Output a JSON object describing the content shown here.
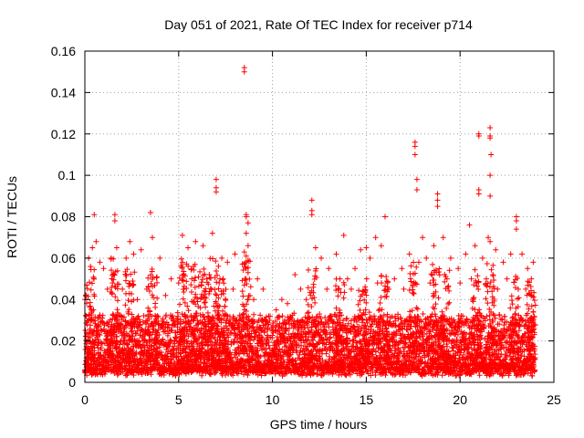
{
  "chart_data": {
    "type": "scatter",
    "title": "Day 051 of 2021, Rate Of TEC Index for receiver p714",
    "xlabel": "GPS time / hours",
    "ylabel": "ROTI / TECUs",
    "xlim": [
      0,
      25
    ],
    "ylim": [
      0,
      0.16
    ],
    "x_ticks": [
      0,
      5,
      10,
      15,
      20,
      25
    ],
    "x_tick_labels": [
      "0",
      "5",
      "10",
      "15",
      "20",
      "25"
    ],
    "y_ticks": [
      0,
      0.02,
      0.04,
      0.06,
      0.08,
      0.1,
      0.12,
      0.14,
      0.16
    ],
    "y_tick_labels": [
      "0",
      "0.02",
      "0.04",
      "0.06",
      "0.08",
      "0.1",
      "0.12",
      "0.14",
      "0.16"
    ],
    "grid": true,
    "marker": "+",
    "series": [
      {
        "name": "ROTI",
        "color": "#ff0000",
        "baseline": {
          "x_start": 0.0,
          "x_end": 24.0,
          "step_hours": 0.015,
          "typical_range": [
            0.003,
            0.03
          ]
        },
        "points": [
          [
            8.5,
            0.152
          ],
          [
            8.5,
            0.15
          ],
          [
            21.0,
            0.12
          ],
          [
            21.0,
            0.119
          ],
          [
            21.6,
            0.123
          ],
          [
            21.6,
            0.119
          ],
          [
            21.6,
            0.118
          ],
          [
            21.65,
            0.11
          ],
          [
            21.6,
            0.1
          ],
          [
            21.6,
            0.09
          ],
          [
            17.6,
            0.116
          ],
          [
            17.6,
            0.114
          ],
          [
            17.6,
            0.11
          ],
          [
            17.7,
            0.098
          ],
          [
            17.7,
            0.093
          ],
          [
            21.0,
            0.093
          ],
          [
            21.0,
            0.091
          ],
          [
            18.8,
            0.091
          ],
          [
            18.8,
            0.088
          ],
          [
            18.8,
            0.085
          ],
          [
            7.0,
            0.098
          ],
          [
            7.0,
            0.094
          ],
          [
            7.0,
            0.092
          ],
          [
            12.1,
            0.088
          ],
          [
            12.1,
            0.083
          ],
          [
            12.1,
            0.081
          ],
          [
            0.5,
            0.081
          ],
          [
            1.6,
            0.081
          ],
          [
            1.6,
            0.078
          ],
          [
            3.5,
            0.082
          ],
          [
            8.6,
            0.081
          ],
          [
            8.6,
            0.08
          ],
          [
            8.7,
            0.077
          ],
          [
            8.6,
            0.072
          ],
          [
            8.7,
            0.066
          ],
          [
            8.5,
            0.063
          ],
          [
            8.6,
            0.061
          ],
          [
            8.7,
            0.059
          ],
          [
            8.5,
            0.057
          ],
          [
            8.6,
            0.055
          ],
          [
            8.7,
            0.053
          ],
          [
            8.6,
            0.05
          ],
          [
            8.5,
            0.047
          ],
          [
            8.4,
            0.044
          ],
          [
            8.7,
            0.04
          ],
          [
            16.0,
            0.08
          ],
          [
            23.0,
            0.08
          ],
          [
            23.0,
            0.078
          ],
          [
            23.0,
            0.074
          ],
          [
            20.5,
            0.076
          ],
          [
            18.0,
            0.07
          ],
          [
            21.5,
            0.07
          ],
          [
            21.6,
            0.068
          ],
          [
            13.8,
            0.071
          ],
          [
            15.0,
            0.065
          ],
          [
            15.5,
            0.07
          ],
          [
            14.7,
            0.064
          ],
          [
            0.4,
            0.065
          ],
          [
            0.6,
            0.068
          ],
          [
            0.2,
            0.06
          ],
          [
            0.3,
            0.056
          ],
          [
            0.8,
            0.058
          ],
          [
            1.0,
            0.055
          ],
          [
            1.4,
            0.06
          ],
          [
            1.7,
            0.065
          ],
          [
            2.2,
            0.06
          ],
          [
            2.4,
            0.068
          ],
          [
            2.6,
            0.062
          ],
          [
            3.0,
            0.064
          ],
          [
            3.6,
            0.07
          ],
          [
            4.0,
            0.06
          ],
          [
            4.6,
            0.05
          ],
          [
            5.2,
            0.071
          ],
          [
            5.5,
            0.065
          ],
          [
            5.9,
            0.068
          ],
          [
            6.3,
            0.066
          ],
          [
            6.8,
            0.072
          ],
          [
            7.3,
            0.06
          ],
          [
            7.6,
            0.058
          ],
          [
            8.0,
            0.062
          ],
          [
            9.2,
            0.05
          ],
          [
            9.5,
            0.045
          ],
          [
            10.5,
            0.04
          ],
          [
            11.2,
            0.052
          ],
          [
            11.5,
            0.045
          ],
          [
            12.3,
            0.065
          ],
          [
            12.6,
            0.06
          ],
          [
            13.0,
            0.055
          ],
          [
            13.4,
            0.062
          ],
          [
            14.0,
            0.05
          ],
          [
            14.4,
            0.055
          ],
          [
            15.2,
            0.06
          ],
          [
            15.8,
            0.066
          ],
          [
            16.5,
            0.05
          ],
          [
            16.9,
            0.055
          ],
          [
            17.3,
            0.062
          ],
          [
            17.8,
            0.058
          ],
          [
            18.2,
            0.06
          ],
          [
            18.6,
            0.066
          ],
          [
            19.1,
            0.07
          ],
          [
            19.5,
            0.06
          ],
          [
            19.9,
            0.055
          ],
          [
            20.3,
            0.062
          ],
          [
            20.8,
            0.066
          ],
          [
            21.2,
            0.06
          ],
          [
            21.9,
            0.064
          ],
          [
            22.3,
            0.058
          ],
          [
            22.7,
            0.062
          ],
          [
            23.3,
            0.062
          ],
          [
            23.6,
            0.055
          ],
          [
            23.9,
            0.058
          ],
          [
            23.8,
            0.05
          ],
          [
            0.1,
            0.047
          ],
          [
            0.0,
            0.04
          ],
          [
            1.2,
            0.045
          ],
          [
            2.0,
            0.045
          ],
          [
            2.8,
            0.04
          ],
          [
            3.3,
            0.045
          ],
          [
            4.3,
            0.042
          ],
          [
            5.0,
            0.048
          ],
          [
            5.7,
            0.05
          ],
          [
            6.5,
            0.05
          ],
          [
            7.2,
            0.05
          ],
          [
            7.9,
            0.045
          ],
          [
            9.0,
            0.04
          ],
          [
            9.8,
            0.032
          ],
          [
            10.2,
            0.035
          ],
          [
            10.8,
            0.038
          ],
          [
            11.8,
            0.04
          ],
          [
            12.9,
            0.045
          ],
          [
            13.6,
            0.05
          ],
          [
            14.2,
            0.045
          ],
          [
            15.6,
            0.048
          ],
          [
            16.2,
            0.045
          ],
          [
            17.0,
            0.045
          ],
          [
            18.4,
            0.048
          ],
          [
            19.3,
            0.05
          ],
          [
            20.0,
            0.048
          ],
          [
            20.6,
            0.05
          ],
          [
            21.4,
            0.05
          ],
          [
            22.0,
            0.045
          ],
          [
            22.5,
            0.05
          ],
          [
            23.1,
            0.045
          ],
          [
            23.5,
            0.045
          ]
        ],
        "spikes": [
          [
            0.3,
            0.055
          ],
          [
            1.6,
            0.06
          ],
          [
            2.4,
            0.055
          ],
          [
            3.6,
            0.055
          ],
          [
            5.3,
            0.06
          ],
          [
            5.9,
            0.058
          ],
          [
            6.4,
            0.055
          ],
          [
            6.9,
            0.06
          ],
          [
            7.3,
            0.052
          ],
          [
            8.6,
            0.06
          ],
          [
            12.1,
            0.055
          ],
          [
            13.6,
            0.05
          ],
          [
            14.8,
            0.05
          ],
          [
            15.9,
            0.052
          ],
          [
            17.5,
            0.058
          ],
          [
            18.7,
            0.06
          ],
          [
            19.2,
            0.055
          ],
          [
            20.9,
            0.055
          ],
          [
            21.6,
            0.058
          ],
          [
            22.9,
            0.052
          ],
          [
            23.8,
            0.05
          ]
        ]
      }
    ]
  }
}
